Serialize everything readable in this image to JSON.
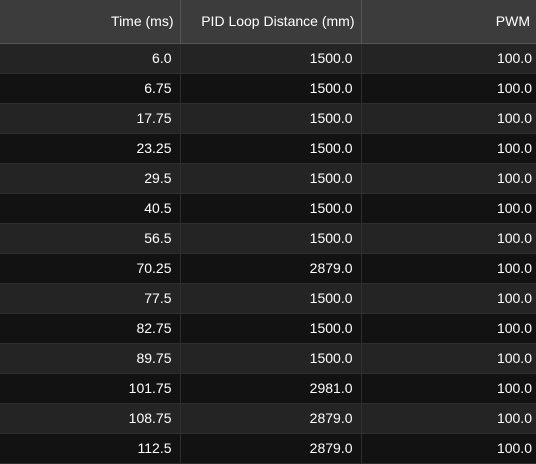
{
  "table": {
    "columns": [
      "Time (ms)",
      "PID Loop Distance (mm)",
      "PWM"
    ],
    "rows": [
      [
        "6.0",
        "1500.0",
        "100.0"
      ],
      [
        "6.75",
        "1500.0",
        "100.0"
      ],
      [
        "17.75",
        "1500.0",
        "100.0"
      ],
      [
        "23.25",
        "1500.0",
        "100.0"
      ],
      [
        "29.5",
        "1500.0",
        "100.0"
      ],
      [
        "40.5",
        "1500.0",
        "100.0"
      ],
      [
        "56.5",
        "1500.0",
        "100.0"
      ],
      [
        "70.25",
        "2879.0",
        "100.0"
      ],
      [
        "77.5",
        "1500.0",
        "100.0"
      ],
      [
        "82.75",
        "1500.0",
        "100.0"
      ],
      [
        "89.75",
        "1500.0",
        "100.0"
      ],
      [
        "101.75",
        "2981.0",
        "100.0"
      ],
      [
        "108.75",
        "2879.0",
        "100.0"
      ],
      [
        "112.5",
        "2879.0",
        "100.0"
      ]
    ]
  }
}
